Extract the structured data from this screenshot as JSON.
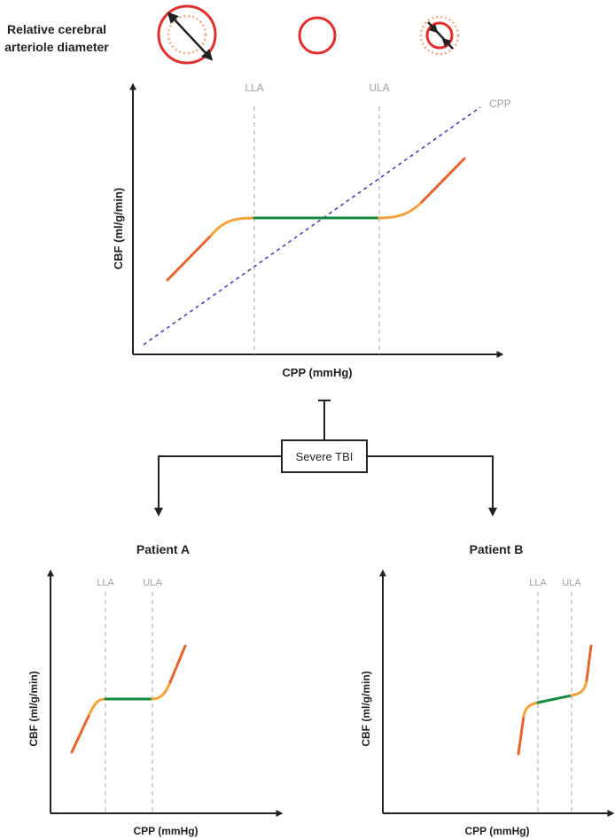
{
  "diameter_label_line1": "Relative cerebral",
  "diameter_label_line2": "arteriole diameter",
  "main_chart": {
    "ylabel": "CBF (ml/g/min)",
    "xlabel": "CPP (mmHg)",
    "lla_label": "LLA",
    "ula_label": "ULA",
    "cpp_line_label": "CPP"
  },
  "tbi_box_label": "Severe TBI",
  "patient_a": {
    "title": "Patient A",
    "ylabel": "CBF (ml/g/min)",
    "xlabel": "CPP (mmHg)",
    "lla_label": "LLA",
    "ula_label": "ULA"
  },
  "patient_b": {
    "title": "Patient B",
    "ylabel": "CBF (ml/g/min)",
    "xlabel": "CPP (mmHg)",
    "lla_label": "LLA",
    "ula_label": "ULA"
  },
  "colors": {
    "vessel": "#e0302e",
    "vessel_dotted": "#f0a989",
    "orange": "#e8642f",
    "amber": "#f2a33a",
    "green": "#138a3d",
    "cpp_dashed": "#3a3ab0",
    "axis": "#222222",
    "guide": "#a8a8a8"
  }
}
